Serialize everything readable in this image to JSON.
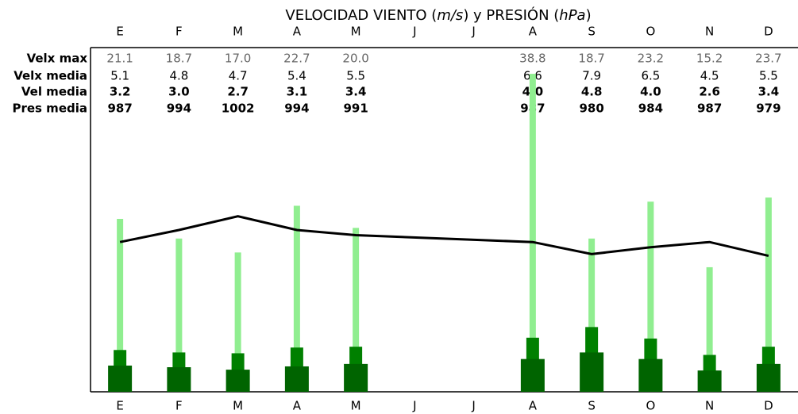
{
  "chart_data": {
    "type": "bar",
    "title": [
      "VELOCIDAD VIENTO (",
      "m/s",
      ") y PRESIÓN (",
      "hPa",
      ")"
    ],
    "categories": [
      "E",
      "F",
      "M",
      "A",
      "M",
      "J",
      "J",
      "A",
      "S",
      "O",
      "N",
      "D"
    ],
    "ylim": [
      0,
      42
    ],
    "y2lim": [
      900,
      1100
    ],
    "series": [
      {
        "name": "Velx max",
        "color": "#90ee90",
        "width": 8,
        "values": [
          21.1,
          18.7,
          17,
          22.7,
          20,
          null,
          null,
          38.8,
          18.7,
          23.2,
          15.2,
          23.7
        ],
        "value_labels": [
          "21.1",
          "18.7",
          "17.0",
          "22.7",
          "20.0",
          null,
          null,
          "38.8",
          "18.7",
          "23.2",
          "15.2",
          "23.7"
        ]
      },
      {
        "name": "Velx media",
        "color": "#008000",
        "width": 16,
        "values": [
          5.1,
          4.8,
          4.7,
          5.4,
          5.5,
          null,
          null,
          6.6,
          7.9,
          6.5,
          4.5,
          5.5
        ]
      },
      {
        "name": "Vel media",
        "color": "#006400",
        "width": 30,
        "values": [
          3.2,
          3,
          2.7,
          3.1,
          3.4,
          null,
          null,
          4,
          4.8,
          4,
          2.6,
          3.4
        ],
        "value_labels": [
          "3.2",
          "3.0",
          "2.7",
          "3.1",
          "3.4",
          null,
          null,
          "4.0",
          "4.8",
          "4.0",
          "2.6",
          "3.4"
        ]
      },
      {
        "name": "Pres media",
        "color": "#000000",
        "type": "line",
        "axis": "y2",
        "values": [
          987,
          994,
          1002,
          994,
          991,
          null,
          null,
          987,
          980,
          984,
          987,
          979
        ]
      }
    ]
  }
}
